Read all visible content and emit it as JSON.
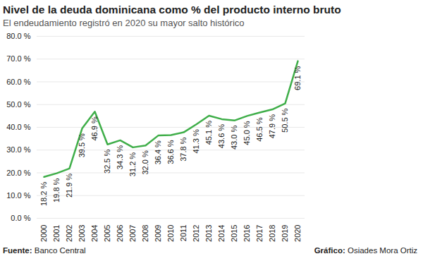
{
  "chart_data": {
    "type": "line",
    "title": "Nivel de la deuda dominicana como % del producto interno bruto",
    "subtitle": "El endeudamiento registró en 2020 su mayor salto histórico",
    "source": "Fuente: Banco Central",
    "credit": "Gráfico: Osiades Mora Ortiz",
    "categories": [
      "2000",
      "2001",
      "2002",
      "2003",
      "2004",
      "2005",
      "2006",
      "2007",
      "2008",
      "2009",
      "2010",
      "2011",
      "2012",
      "2013",
      "2014",
      "2015",
      "2016",
      "2017",
      "2018",
      "2019",
      "2020"
    ],
    "values": [
      18.2,
      19.8,
      21.9,
      39.5,
      46.9,
      32.5,
      34.3,
      31.2,
      32.0,
      36.4,
      36.6,
      37.8,
      41.3,
      45.1,
      43.6,
      43.0,
      45.0,
      46.5,
      47.9,
      50.5,
      69.1
    ],
    "value_labels": [
      "18.2 %",
      "19.8 %",
      "21.9 %",
      "39.5 %",
      "46.9 %",
      "32.5 %",
      "34.3 %",
      "31.2 %",
      "32.0 %",
      "36.4 %",
      "36.6 %",
      "37.8 %",
      "41.3 %",
      "45.1 %",
      "43.6 %",
      "43.0 %",
      "45.0 %",
      "46.5 %",
      "47.9 %",
      "50.5 %",
      "69.1 %"
    ],
    "data_labels": true,
    "color": "#3fae49",
    "ylim": [
      0,
      80
    ],
    "yticks": [
      {
        "value": 0,
        "label": "0.0 %"
      },
      {
        "value": 10,
        "label": "10.0 %"
      },
      {
        "value": 20,
        "label": "20.0 %"
      },
      {
        "value": 30,
        "label": "30.0 %"
      },
      {
        "value": 40,
        "label": "40.0 %"
      },
      {
        "value": 50,
        "label": "50.0 %"
      },
      {
        "value": 60,
        "label": "60.0 %"
      },
      {
        "value": 70,
        "label": "70.0 %"
      },
      {
        "value": 80,
        "label": "80.0 %"
      }
    ],
    "grid": true
  }
}
